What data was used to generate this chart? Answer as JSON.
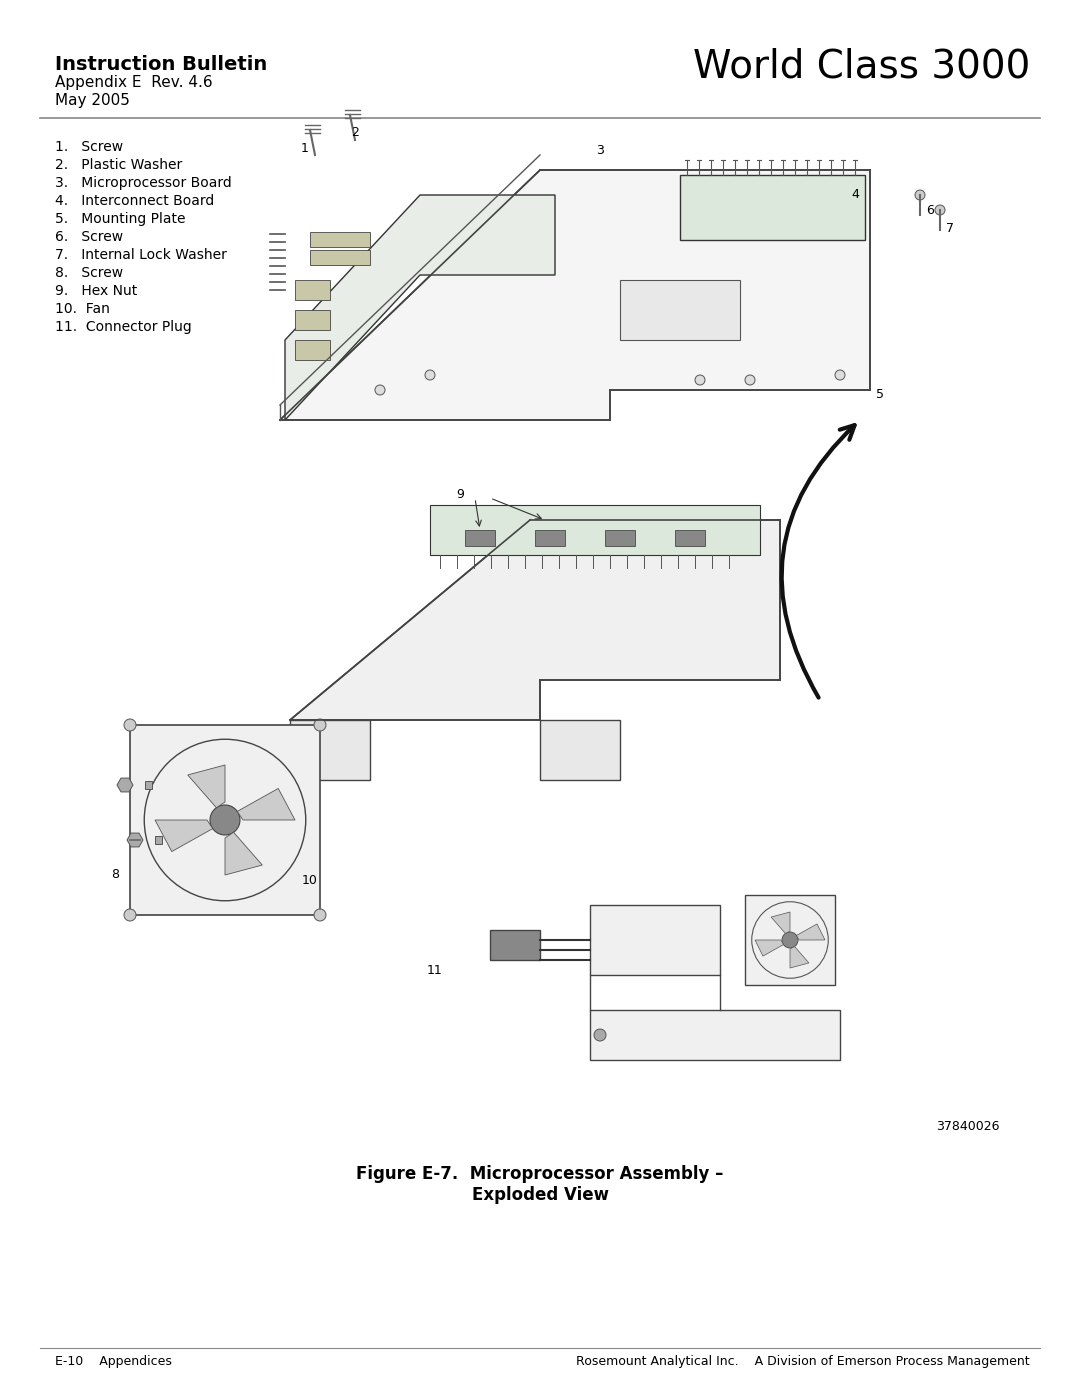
{
  "title_bold": "Instruction Bulletin",
  "title_sub1": "Appendix E  Rev. 4.6",
  "title_sub2": "May 2005",
  "title_right": "World Class 3000",
  "parts_list": [
    "1.   Screw",
    "2.   Plastic Washer",
    "3.   Microprocessor Board",
    "4.   Interconnect Board",
    "5.   Mounting Plate",
    "6.   Screw",
    "7.   Internal Lock Washer",
    "8.   Screw",
    "9.   Hex Nut",
    "10.  Fan",
    "11.  Connector Plug"
  ],
  "figure_caption_line1": "Figure E-7.  Microprocessor Assembly –",
  "figure_caption_line2": "Exploded View",
  "part_number": "37840026",
  "footer_left": "E-10    Appendices",
  "footer_right": "Rosemount Analytical Inc.    A Division of Emerson Process Management",
  "bg_color": "#ffffff",
  "text_color": "#000000",
  "line_color": "#888888"
}
